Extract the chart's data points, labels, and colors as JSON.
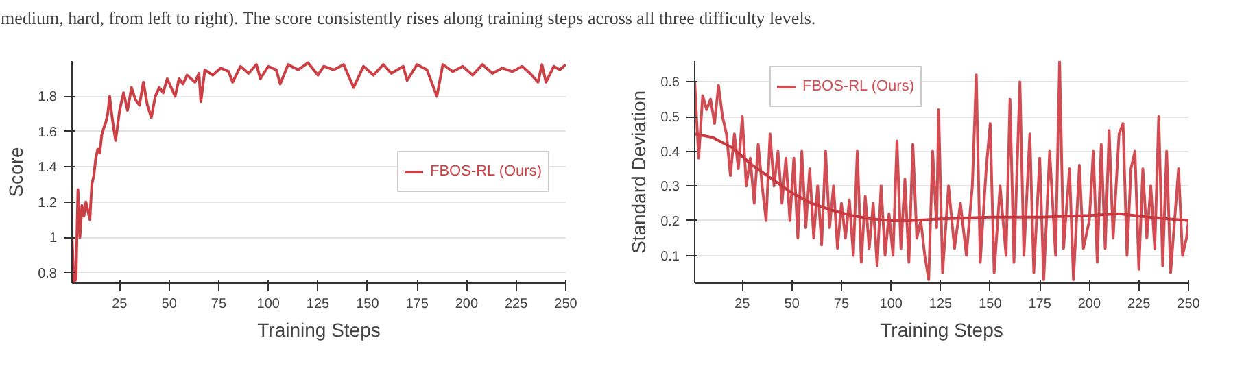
{
  "chart_data": [
    {
      "type": "line",
      "xlabel": "Training Steps",
      "ylabel": "Score",
      "annotations": [
        "medium, hard, from left to right). The score consistently rises along training steps across all three difficulty levels."
      ],
      "xlim": [
        1,
        250
      ],
      "xticks": [
        25,
        50,
        75,
        100,
        125,
        150,
        175,
        200,
        225,
        250
      ],
      "ylim": [
        0.74,
        2.0
      ],
      "yticks": [
        0.8,
        1,
        1.2,
        1.4,
        1.6,
        1.8
      ],
      "grid": "y",
      "legend": "right",
      "series": [
        {
          "name": "FBOS-RL (Ours)",
          "color": "#cc3f45",
          "x": [
            1,
            2,
            3,
            4,
            5,
            6,
            7,
            8,
            9,
            10,
            11,
            12,
            13,
            14,
            15,
            16,
            17,
            18,
            19,
            20,
            21,
            22,
            23,
            25,
            27,
            29,
            31,
            33,
            35,
            37,
            39,
            41,
            43,
            45,
            47,
            49,
            51,
            53,
            55,
            57,
            59,
            61,
            63,
            65,
            66,
            68,
            72,
            76,
            80,
            82,
            86,
            90,
            94,
            96,
            100,
            104,
            106,
            110,
            115,
            120,
            125,
            128,
            133,
            138,
            143,
            148,
            153,
            158,
            162,
            168,
            170,
            175,
            180,
            185,
            188,
            193,
            198,
            203,
            208,
            213,
            218,
            223,
            228,
            232,
            236,
            238,
            240,
            244,
            247,
            250
          ],
          "values": [
            1.0,
            0.75,
            0.76,
            1.27,
            1.0,
            1.18,
            1.12,
            1.2,
            1.15,
            1.1,
            1.3,
            1.35,
            1.45,
            1.5,
            1.48,
            1.58,
            1.62,
            1.65,
            1.7,
            1.8,
            1.7,
            1.62,
            1.55,
            1.72,
            1.82,
            1.72,
            1.85,
            1.78,
            1.75,
            1.88,
            1.75,
            1.68,
            1.8,
            1.85,
            1.82,
            1.9,
            1.85,
            1.8,
            1.9,
            1.87,
            1.92,
            1.9,
            1.88,
            1.93,
            1.77,
            1.95,
            1.92,
            1.96,
            1.94,
            1.88,
            1.97,
            1.93,
            1.98,
            1.9,
            1.97,
            1.95,
            1.87,
            1.98,
            1.95,
            1.99,
            1.92,
            1.97,
            1.95,
            1.98,
            1.85,
            1.97,
            1.92,
            1.98,
            1.93,
            1.97,
            1.89,
            1.98,
            1.95,
            1.8,
            1.98,
            1.94,
            1.97,
            1.92,
            1.98,
            1.93,
            1.96,
            1.94,
            1.97,
            1.93,
            1.88,
            1.98,
            1.88,
            1.97,
            1.95,
            1.98
          ]
        }
      ]
    },
    {
      "type": "line",
      "xlabel": "Training Steps",
      "ylabel": "Standard Deviation",
      "xlim": [
        1,
        250
      ],
      "xticks": [
        25,
        50,
        75,
        100,
        125,
        150,
        175,
        200,
        225,
        250
      ],
      "ylim": [
        0.02,
        0.66
      ],
      "yticks": [
        0.1,
        0.2,
        0.3,
        0.4,
        0.5,
        0.6
      ],
      "grid": "y",
      "legend": "top left",
      "series": [
        {
          "name": "FBOS-RL (Ours)",
          "color": "#d24d53",
          "x": [
            1,
            3,
            5,
            7,
            9,
            11,
            13,
            15,
            17,
            19,
            21,
            23,
            25,
            27,
            29,
            31,
            33,
            35,
            37,
            39,
            41,
            43,
            45,
            47,
            49,
            51,
            53,
            55,
            57,
            59,
            61,
            63,
            65,
            67,
            69,
            71,
            73,
            75,
            77,
            79,
            81,
            83,
            85,
            87,
            89,
            91,
            93,
            95,
            97,
            99,
            101,
            103,
            105,
            107,
            109,
            111,
            113,
            115,
            117,
            119,
            121,
            123,
            124,
            126,
            129,
            132,
            135,
            138,
            141,
            143,
            145,
            148,
            150,
            152,
            155,
            158,
            160,
            162,
            165,
            167,
            170,
            172,
            175,
            177,
            180,
            183,
            185,
            187,
            190,
            192,
            195,
            197,
            200,
            202,
            204,
            206,
            208,
            210,
            212,
            215,
            217,
            219,
            221,
            223,
            225,
            227,
            229,
            231,
            233,
            235,
            237,
            239,
            241,
            243,
            245,
            247,
            249,
            250
          ],
          "values": [
            0.6,
            0.38,
            0.56,
            0.52,
            0.55,
            0.48,
            0.59,
            0.5,
            0.45,
            0.33,
            0.45,
            0.35,
            0.5,
            0.3,
            0.38,
            0.25,
            0.42,
            0.3,
            0.2,
            0.45,
            0.3,
            0.4,
            0.25,
            0.38,
            0.2,
            0.38,
            0.15,
            0.4,
            0.18,
            0.35,
            0.15,
            0.3,
            0.13,
            0.4,
            0.18,
            0.3,
            0.12,
            0.25,
            0.15,
            0.26,
            0.1,
            0.4,
            0.08,
            0.27,
            0.12,
            0.25,
            0.07,
            0.3,
            0.1,
            0.22,
            0.1,
            0.43,
            0.12,
            0.32,
            0.08,
            0.42,
            0.15,
            0.2,
            0.1,
            0.03,
            0.4,
            0.18,
            0.52,
            0.05,
            0.3,
            0.12,
            0.25,
            0.1,
            0.3,
            0.62,
            0.08,
            0.35,
            0.48,
            0.05,
            0.3,
            0.1,
            0.55,
            0.08,
            0.6,
            0.1,
            0.45,
            0.05,
            0.38,
            0.03,
            0.4,
            0.1,
            0.66,
            0.12,
            0.35,
            0.03,
            0.36,
            0.12,
            0.2,
            0.4,
            0.08,
            0.42,
            0.12,
            0.46,
            0.15,
            0.45,
            0.48,
            0.1,
            0.35,
            0.4,
            0.06,
            0.35,
            0.15,
            0.3,
            0.12,
            0.5,
            0.07,
            0.4,
            0.05,
            0.2,
            0.35,
            0.1,
            0.15,
            0.2
          ]
        },
        {
          "color": "#c83a40",
          "x": [
            1,
            10,
            20,
            30,
            40,
            50,
            60,
            70,
            80,
            90,
            100,
            110,
            125,
            150,
            175,
            200,
            215,
            230,
            250
          ],
          "values": [
            0.45,
            0.44,
            0.41,
            0.36,
            0.32,
            0.28,
            0.25,
            0.23,
            0.215,
            0.205,
            0.2,
            0.2,
            0.205,
            0.21,
            0.21,
            0.215,
            0.22,
            0.21,
            0.2
          ]
        }
      ]
    }
  ]
}
